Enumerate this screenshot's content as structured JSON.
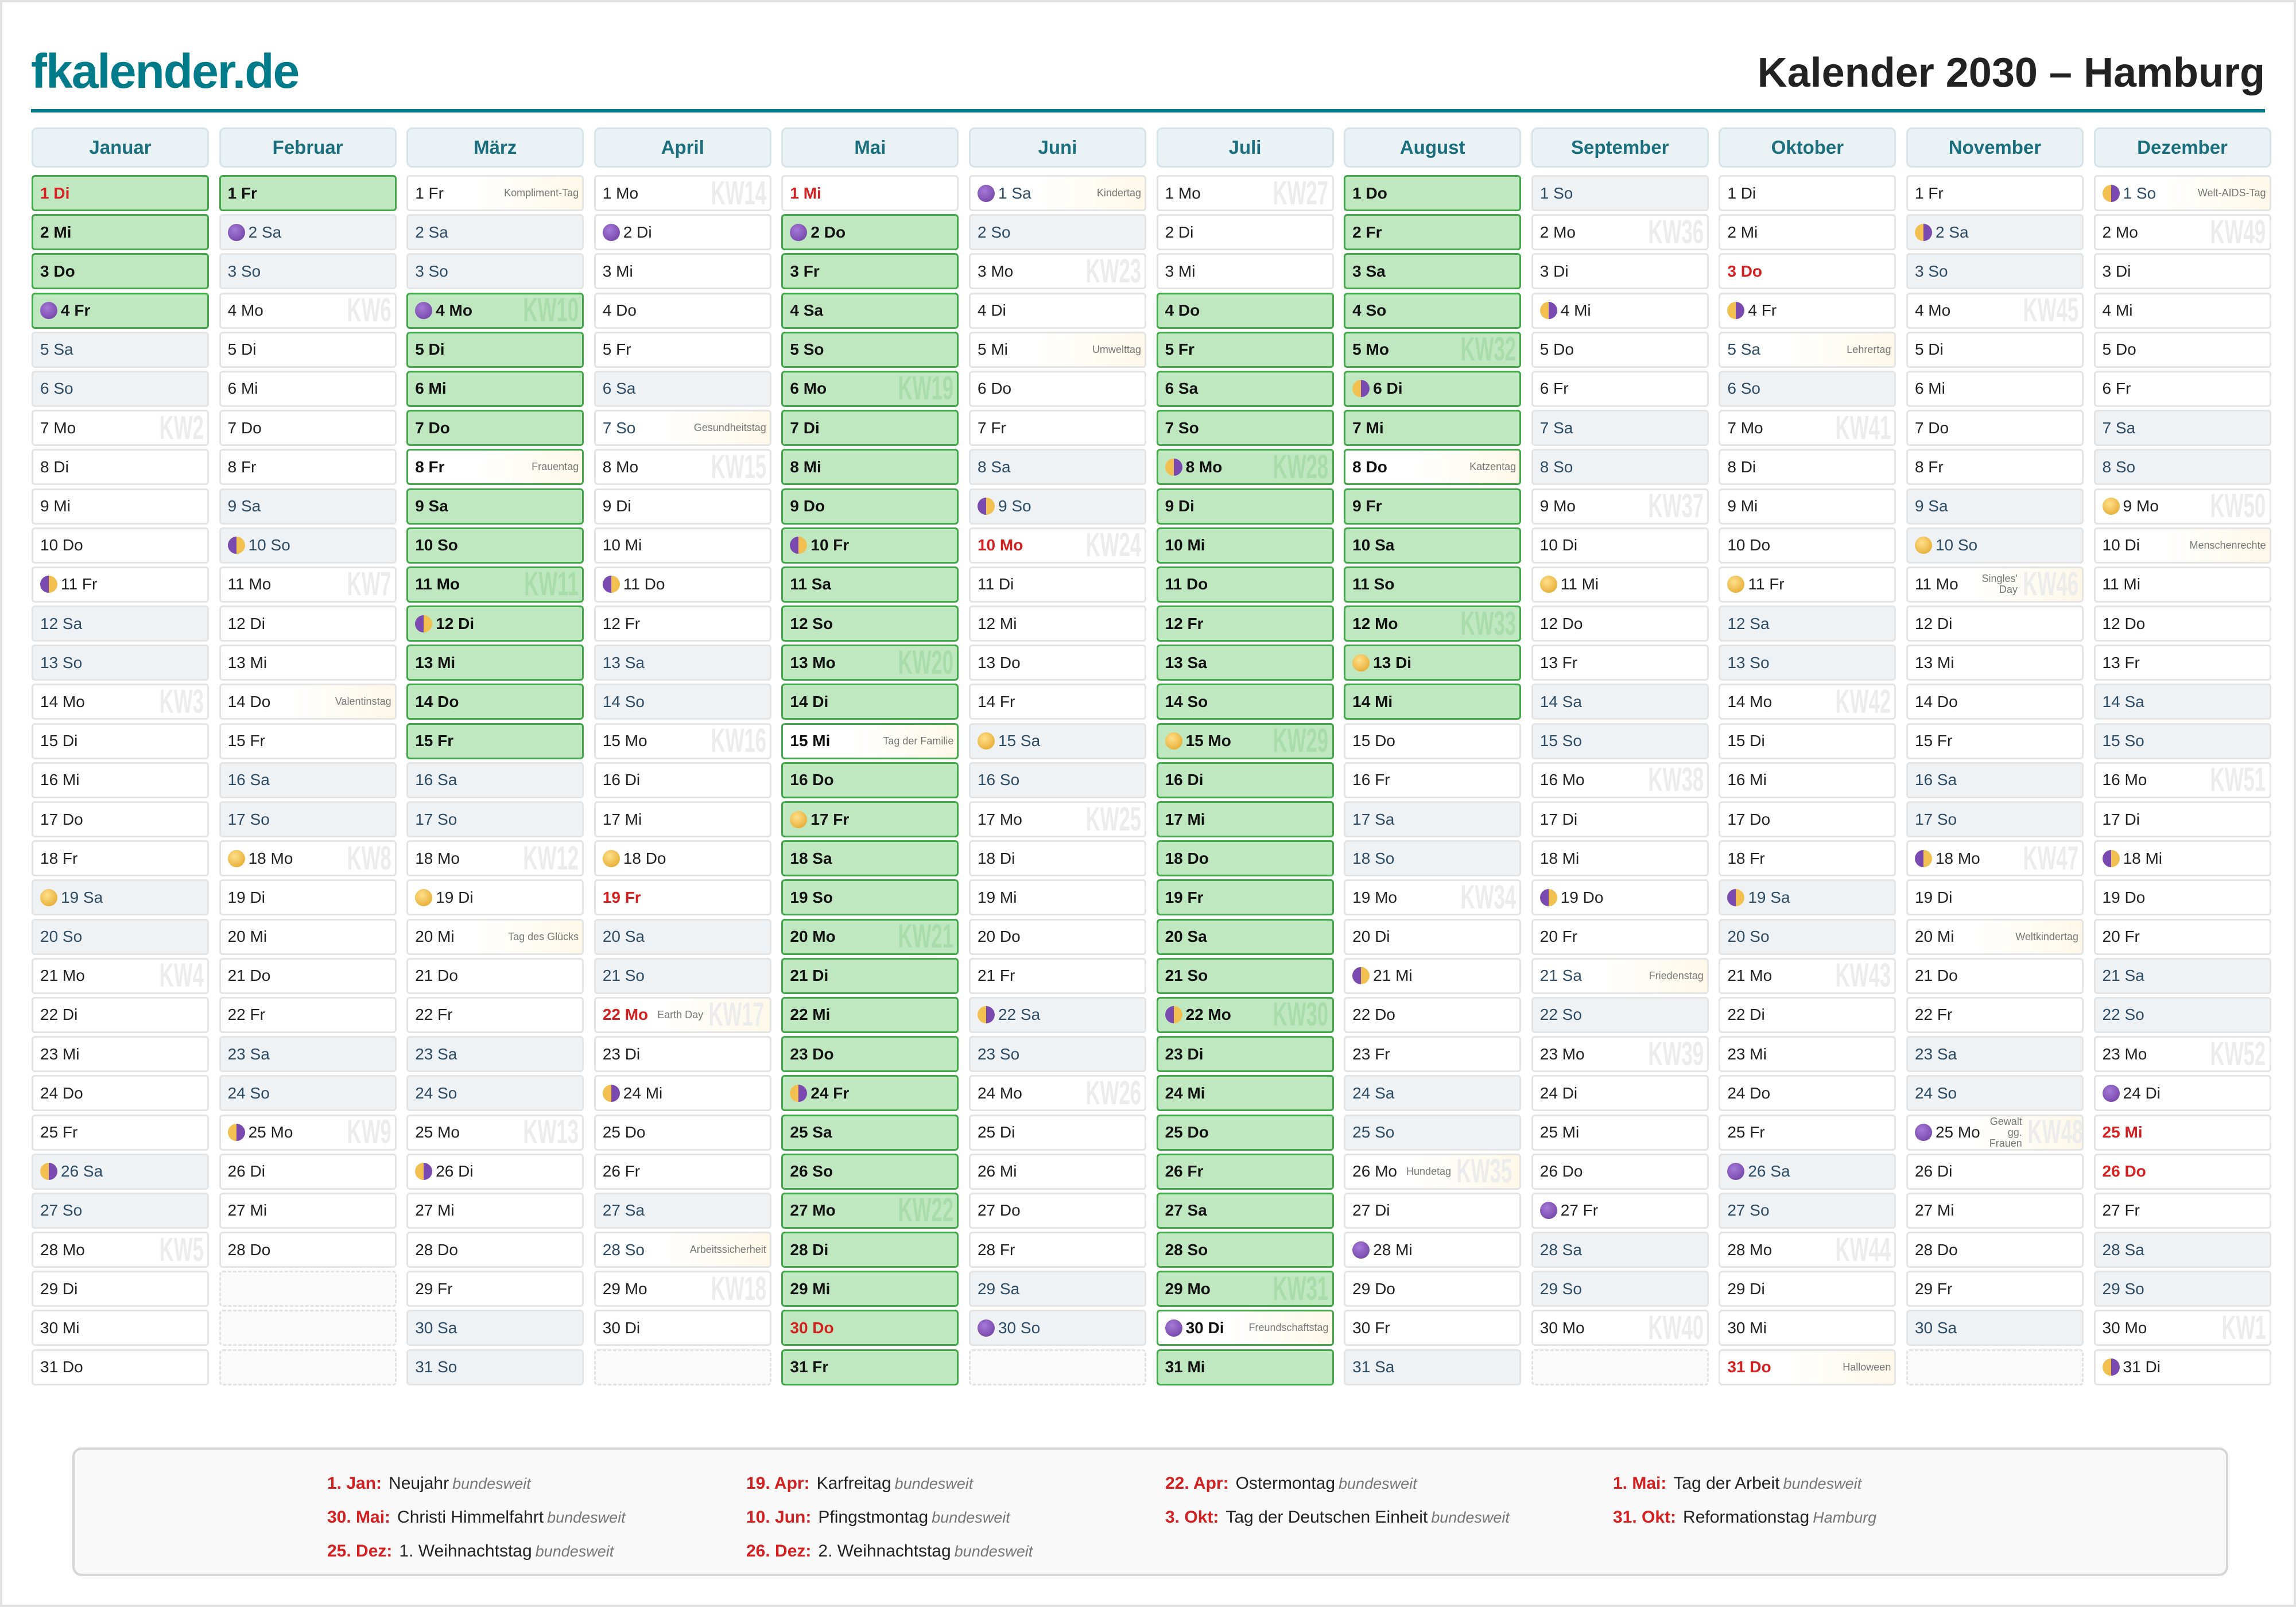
{
  "header": {
    "logo": "fkalender.de",
    "title": "Kalender 2030 – Hamburg"
  },
  "months": [
    {
      "name": "Januar",
      "days": [
        "1 Di",
        "2 Mi",
        "3 Do",
        "4 Fr",
        "5 Sa",
        "6 So",
        "7 Mo",
        "8 Di",
        "9 Mi",
        "10 Do",
        "11 Fr",
        "12 Sa",
        "13 So",
        "14 Mo",
        "15 Di",
        "16 Mi",
        "17 Do",
        "18 Fr",
        "19 Sa",
        "20 So",
        "21 Mo",
        "22 Di",
        "23 Mi",
        "24 Do",
        "25 Fr",
        "26 Sa",
        "27 So",
        "28 Mo",
        "29 Di",
        "30 Mi",
        "31 Do"
      ],
      "ferien": [
        1,
        2,
        3,
        4
      ],
      "holidays": [
        1
      ],
      "events": {},
      "moons": {
        "4": "new",
        "11": "fq",
        "19": "full",
        "26": "lq"
      },
      "kw": {
        "7": "KW2",
        "14": "KW3",
        "21": "KW4",
        "28": "KW5"
      }
    },
    {
      "name": "Februar",
      "days": [
        "1 Fr",
        "2 Sa",
        "3 So",
        "4 Mo",
        "5 Di",
        "6 Mi",
        "7 Do",
        "8 Fr",
        "9 Sa",
        "10 So",
        "11 Mo",
        "12 Di",
        "13 Mi",
        "14 Do",
        "15 Fr",
        "16 Sa",
        "17 So",
        "18 Mo",
        "19 Di",
        "20 Mi",
        "21 Do",
        "22 Fr",
        "23 Sa",
        "24 So",
        "25 Mo",
        "26 Di",
        "27 Mi",
        "28 Do"
      ],
      "ferien": [
        1
      ],
      "holidays": [],
      "events": {
        "14": "Valentinstag"
      },
      "moons": {
        "2": "new",
        "10": "fq",
        "18": "full",
        "25": "lq"
      },
      "kw": {
        "4": "KW6",
        "11": "KW7",
        "18": "KW8",
        "25": "KW9"
      }
    },
    {
      "name": "März",
      "days": [
        "1 Fr",
        "2 Sa",
        "3 So",
        "4 Mo",
        "5 Di",
        "6 Mi",
        "7 Do",
        "8 Fr",
        "9 Sa",
        "10 So",
        "11 Mo",
        "12 Di",
        "13 Mi",
        "14 Do",
        "15 Fr",
        "16 Sa",
        "17 So",
        "18 Mo",
        "19 Di",
        "20 Mi",
        "21 Do",
        "22 Fr",
        "23 Sa",
        "24 So",
        "25 Mo",
        "26 Di",
        "27 Mi",
        "28 Do",
        "29 Fr",
        "30 Sa",
        "31 So"
      ],
      "ferien": [
        4,
        5,
        6,
        7,
        8,
        9,
        10,
        11,
        12,
        13,
        14,
        15
      ],
      "holidays": [],
      "events": {
        "1": "Kompliment-Tag",
        "8": "Frauentag",
        "20": "Tag des Glücks"
      },
      "moons": {
        "4": "new",
        "12": "fq",
        "19": "full",
        "26": "lq"
      },
      "kw": {
        "4": "KW10",
        "11": "KW11",
        "18": "KW12",
        "25": "KW13"
      }
    },
    {
      "name": "April",
      "days": [
        "1 Mo",
        "2 Di",
        "3 Mi",
        "4 Do",
        "5 Fr",
        "6 Sa",
        "7 So",
        "8 Mo",
        "9 Di",
        "10 Mi",
        "11 Do",
        "12 Fr",
        "13 Sa",
        "14 So",
        "15 Mo",
        "16 Di",
        "17 Mi",
        "18 Do",
        "19 Fr",
        "20 Sa",
        "21 So",
        "22 Mo",
        "23 Di",
        "24 Mi",
        "25 Do",
        "26 Fr",
        "27 Sa",
        "28 So",
        "29 Mo",
        "30 Di"
      ],
      "ferien": [],
      "holidays": [
        19,
        22
      ],
      "events": {
        "7": "Gesundheitstag",
        "22": "Earth Day",
        "28": "Arbeitssicherheit"
      },
      "moons": {
        "2": "new",
        "11": "fq",
        "18": "full",
        "24": "lq"
      },
      "kw": {
        "1": "KW14",
        "8": "KW15",
        "15": "KW16",
        "22": "KW17",
        "29": "KW18"
      }
    },
    {
      "name": "Mai",
      "days": [
        "1 Mi",
        "2 Do",
        "3 Fr",
        "4 Sa",
        "5 So",
        "6 Mo",
        "7 Di",
        "8 Mi",
        "9 Do",
        "10 Fr",
        "11 Sa",
        "12 So",
        "13 Mo",
        "14 Di",
        "15 Mi",
        "16 Do",
        "17 Fr",
        "18 Sa",
        "19 So",
        "20 Mo",
        "21 Di",
        "22 Mi",
        "23 Do",
        "24 Fr",
        "25 Sa",
        "26 So",
        "27 Mo",
        "28 Di",
        "29 Mi",
        "30 Do",
        "31 Fr"
      ],
      "ferien": [
        2,
        3,
        4,
        5,
        6,
        7,
        8,
        9,
        10,
        11,
        12,
        13,
        14,
        15,
        16,
        17,
        18,
        19,
        20,
        21,
        22,
        23,
        24,
        25,
        26,
        27,
        28,
        29,
        30,
        31
      ],
      "holidays": [
        1,
        30
      ],
      "events": {
        "15": "Tag der Familie"
      },
      "moons": {
        "2": "new",
        "10": "fq",
        "17": "full",
        "24": "lq"
      },
      "kw": {
        "6": "KW19",
        "13": "KW20",
        "20": "KW21",
        "27": "KW22"
      }
    },
    {
      "name": "Juni",
      "days": [
        "1 Sa",
        "2 So",
        "3 Mo",
        "4 Di",
        "5 Mi",
        "6 Do",
        "7 Fr",
        "8 Sa",
        "9 So",
        "10 Mo",
        "11 Di",
        "12 Mi",
        "13 Do",
        "14 Fr",
        "15 Sa",
        "16 So",
        "17 Mo",
        "18 Di",
        "19 Mi",
        "20 Do",
        "21 Fr",
        "22 Sa",
        "23 So",
        "24 Mo",
        "25 Di",
        "26 Mi",
        "27 Do",
        "28 Fr",
        "29 Sa",
        "30 So"
      ],
      "ferien": [],
      "holidays": [
        10
      ],
      "events": {
        "1": "Kindertag",
        "5": "Umwelttag"
      },
      "moons": {
        "1": "new",
        "9": "fq",
        "15": "full",
        "22": "lq",
        "30": "new"
      },
      "kw": {
        "3": "KW23",
        "10": "KW24",
        "17": "KW25",
        "24": "KW26"
      }
    },
    {
      "name": "Juli",
      "days": [
        "1 Mo",
        "2 Di",
        "3 Mi",
        "4 Do",
        "5 Fr",
        "6 Sa",
        "7 So",
        "8 Mo",
        "9 Di",
        "10 Mi",
        "11 Do",
        "12 Fr",
        "13 Sa",
        "14 So",
        "15 Mo",
        "16 Di",
        "17 Mi",
        "18 Do",
        "19 Fr",
        "20 Sa",
        "21 So",
        "22 Mo",
        "23 Di",
        "24 Mi",
        "25 Do",
        "26 Fr",
        "27 Sa",
        "28 So",
        "29 Mo",
        "30 Di",
        "31 Mi"
      ],
      "ferien": [
        4,
        5,
        6,
        7,
        8,
        9,
        10,
        11,
        12,
        13,
        14,
        15,
        16,
        17,
        18,
        19,
        20,
        21,
        22,
        23,
        24,
        25,
        26,
        27,
        28,
        29,
        30,
        31
      ],
      "holidays": [],
      "events": {
        "30": "Freundschaftstag"
      },
      "moons": {
        "8": "lq",
        "15": "full",
        "22": "fq",
        "30": "new"
      },
      "kw": {
        "1": "KW27",
        "8": "KW28",
        "15": "KW29",
        "22": "KW30",
        "29": "KW31"
      }
    },
    {
      "name": "August",
      "days": [
        "1 Do",
        "2 Fr",
        "3 Sa",
        "4 So",
        "5 Mo",
        "6 Di",
        "7 Mi",
        "8 Do",
        "9 Fr",
        "10 Sa",
        "11 So",
        "12 Mo",
        "13 Di",
        "14 Mi",
        "15 Do",
        "16 Fr",
        "17 Sa",
        "18 So",
        "19 Mo",
        "20 Di",
        "21 Mi",
        "22 Do",
        "23 Fr",
        "24 Sa",
        "25 So",
        "26 Mo",
        "27 Di",
        "28 Mi",
        "29 Do",
        "30 Fr",
        "31 Sa"
      ],
      "ferien": [
        1,
        2,
        3,
        4,
        5,
        6,
        7,
        8,
        9,
        10,
        11,
        12,
        13,
        14
      ],
      "holidays": [],
      "events": {
        "8": "Katzentag",
        "26": "Hundetag"
      },
      "moons": {
        "6": "lq",
        "13": "full",
        "21": "fq",
        "28": "new"
      },
      "kw": {
        "5": "KW32",
        "12": "KW33",
        "19": "KW34",
        "26": "KW35"
      }
    },
    {
      "name": "September",
      "days": [
        "1 So",
        "2 Mo",
        "3 Di",
        "4 Mi",
        "5 Do",
        "6 Fr",
        "7 Sa",
        "8 So",
        "9 Mo",
        "10 Di",
        "11 Mi",
        "12 Do",
        "13 Fr",
        "14 Sa",
        "15 So",
        "16 Mo",
        "17 Di",
        "18 Mi",
        "19 Do",
        "20 Fr",
        "21 Sa",
        "22 So",
        "23 Mo",
        "24 Di",
        "25 Mi",
        "26 Do",
        "27 Fr",
        "28 Sa",
        "29 So",
        "30 Mo"
      ],
      "ferien": [],
      "holidays": [],
      "events": {
        "21": "Friedenstag"
      },
      "moons": {
        "4": "lq",
        "11": "full",
        "19": "fq",
        "27": "new"
      },
      "kw": {
        "2": "KW36",
        "9": "KW37",
        "16": "KW38",
        "23": "KW39",
        "30": "KW40"
      }
    },
    {
      "name": "Oktober",
      "days": [
        "1 Di",
        "2 Mi",
        "3 Do",
        "4 Fr",
        "5 Sa",
        "6 So",
        "7 Mo",
        "8 Di",
        "9 Mi",
        "10 Do",
        "11 Fr",
        "12 Sa",
        "13 So",
        "14 Mo",
        "15 Di",
        "16 Mi",
        "17 Do",
        "18 Fr",
        "19 Sa",
        "20 So",
        "21 Mo",
        "22 Di",
        "23 Mi",
        "24 Do",
        "25 Fr",
        "26 Sa",
        "27 So",
        "28 Mo",
        "29 Di",
        "30 Mi",
        "31 Do"
      ],
      "ferien": [],
      "holidays": [
        3,
        31
      ],
      "events": {
        "5": "Lehrertag",
        "31": "Halloween"
      },
      "moons": {
        "4": "lq",
        "11": "full",
        "19": "fq",
        "26": "new"
      },
      "kw": {
        "7": "KW41",
        "14": "KW42",
        "21": "KW43",
        "28": "KW44"
      }
    },
    {
      "name": "November",
      "days": [
        "1 Fr",
        "2 Sa",
        "3 So",
        "4 Mo",
        "5 Di",
        "6 Mi",
        "7 Do",
        "8 Fr",
        "9 Sa",
        "10 So",
        "11 Mo",
        "12 Di",
        "13 Mi",
        "14 Do",
        "15 Fr",
        "16 Sa",
        "17 So",
        "18 Mo",
        "19 Di",
        "20 Mi",
        "21 Do",
        "22 Fr",
        "23 Sa",
        "24 So",
        "25 Mo",
        "26 Di",
        "27 Mi",
        "28 Do",
        "29 Fr",
        "30 Sa"
      ],
      "ferien": [],
      "holidays": [],
      "events": {
        "11": "Singles' Day",
        "20": "Weltkindertag",
        "25": "Gewalt gg. Frauen"
      },
      "moons": {
        "2": "lq",
        "10": "full",
        "18": "fq",
        "25": "new"
      },
      "kw": {
        "4": "KW45",
        "11": "KW46",
        "18": "KW47",
        "25": "KW48"
      }
    },
    {
      "name": "Dezember",
      "days": [
        "1 So",
        "2 Mo",
        "3 Di",
        "4 Mi",
        "5 Do",
        "6 Fr",
        "7 Sa",
        "8 So",
        "9 Mo",
        "10 Di",
        "11 Mi",
        "12 Do",
        "13 Fr",
        "14 Sa",
        "15 So",
        "16 Mo",
        "17 Di",
        "18 Mi",
        "19 Do",
        "20 Fr",
        "21 Sa",
        "22 So",
        "23 Mo",
        "24 Di",
        "25 Mi",
        "26 Do",
        "27 Fr",
        "28 Sa",
        "29 So",
        "30 Mo",
        "31 Di"
      ],
      "ferien": [],
      "holidays": [
        25,
        26
      ],
      "events": {
        "1": "Welt-AIDS-Tag",
        "10": "Menschenrechte"
      },
      "moons": {
        "1": "lq",
        "9": "full",
        "18": "fq",
        "24": "new",
        "31": "lq"
      },
      "kw": {
        "2": "KW49",
        "9": "KW50",
        "16": "KW51",
        "23": "KW52",
        "30": "KW1"
      }
    }
  ],
  "legend": [
    {
      "date": "1. Jan:",
      "name": "Neujahr",
      "scope": "bundesweit"
    },
    {
      "date": "30. Mai:",
      "name": "Christi Himmelfahrt",
      "scope": "bundesweit"
    },
    {
      "date": "25. Dez:",
      "name": "1. Weihnachtstag",
      "scope": "bundesweit"
    },
    {
      "date": "19. Apr:",
      "name": "Karfreitag",
      "scope": "bundesweit"
    },
    {
      "date": "10. Jun:",
      "name": "Pfingstmontag",
      "scope": "bundesweit"
    },
    {
      "date": "26. Dez:",
      "name": "2. Weihnachtstag",
      "scope": "bundesweit"
    },
    {
      "date": "22. Apr:",
      "name": "Ostermontag",
      "scope": "bundesweit"
    },
    {
      "date": "3. Okt:",
      "name": "Tag der Deutschen Einheit",
      "scope": "bundesweit"
    },
    {
      "date": "1. Mai:",
      "name": "Tag der Arbeit",
      "scope": "bundesweit"
    },
    {
      "date": "31. Okt:",
      "name": "Reformationstag",
      "scope": "Hamburg"
    }
  ],
  "colors": {
    "brand": "#007b8a",
    "holiday": "#d42020",
    "ferien": "#c0e8c0",
    "weekend": "#eef2f5"
  }
}
